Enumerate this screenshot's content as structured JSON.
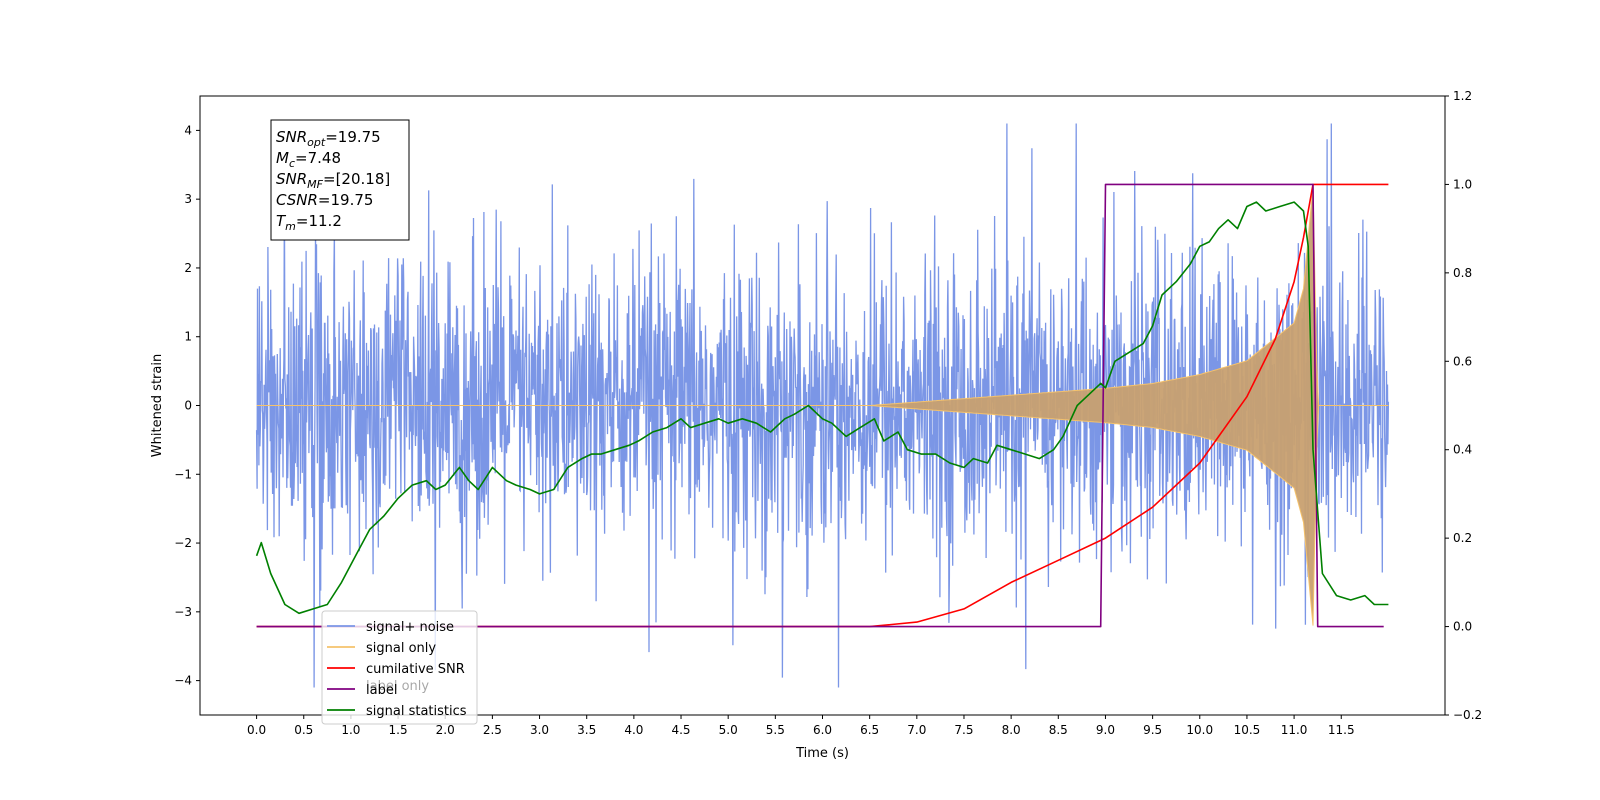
{
  "chart_data": {
    "type": "line",
    "xlabel": "Time (s)",
    "ylabel_left": "Whitened strain",
    "ylabel_right": "",
    "x_ticks": [
      "0.0",
      "0.5",
      "1.0",
      "1.5",
      "2.0",
      "2.5",
      "3.0",
      "3.5",
      "4.0",
      "4.5",
      "5.0",
      "5.5",
      "6.0",
      "6.5",
      "7.0",
      "7.5",
      "8.0",
      "8.5",
      "9.0",
      "9.5",
      "10.0",
      "10.5",
      "11.0",
      "11.5"
    ],
    "xlim": [
      -0.6,
      12.6
    ],
    "ylim_left": [
      -4.5,
      4.5
    ],
    "y_ticks_left": [
      4,
      3,
      2,
      1,
      0,
      -1,
      -2,
      -3,
      -4
    ],
    "y_tick_labels_left": [
      "4",
      "3",
      "2",
      "1",
      "0",
      "−1",
      "−2",
      "−3",
      "−4"
    ],
    "ylim_right": [
      -0.2,
      1.2
    ],
    "y_ticks_right": [
      1.2,
      1.0,
      0.8,
      0.6,
      0.4,
      0.2,
      0.0,
      -0.2
    ],
    "y_tick_labels_right": [
      "1.2",
      "1.0",
      "0.8",
      "0.6",
      "0.4",
      "0.2",
      "0.0",
      "−0.2"
    ],
    "grid": false,
    "annotation": {
      "lines": [
        {
          "sym": "SNR",
          "sub": "opt",
          "value": "=19.75"
        },
        {
          "sym": "M",
          "sub": "c",
          "value": "=7.48"
        },
        {
          "sym": "SNR",
          "sub": "MF",
          "value": "=[20.18]"
        },
        {
          "sym": "CSNR",
          "sub": "",
          "value": "=19.75"
        },
        {
          "sym": "T",
          "sub": "m",
          "value": "=11.2"
        }
      ]
    },
    "legend": {
      "position": "lower-left",
      "entries": [
        {
          "label": "signal+ noise",
          "color": "#7b96e6"
        },
        {
          "label": "signal only",
          "color": "#f5c26b"
        },
        {
          "label": "cumilative SNR",
          "color": "#ff0000"
        },
        {
          "label": "label",
          "color": "#800080"
        },
        {
          "label": "signal statistics",
          "color": "#008000"
        }
      ],
      "hidden_label": "label only"
    },
    "series": [
      {
        "name": "signal+ noise",
        "axis": "left",
        "color": "#7b96e6",
        "x_range": [
          0.0,
          12.0
        ],
        "envelope": "noise, amplitude ~1.5 sigma, spikes up to about 4.1 and down to about -4.1"
      },
      {
        "name": "signal only",
        "axis": "left",
        "color": "#c8a070",
        "x_range": [
          0.0,
          12.0
        ],
        "envelope_x": [
          0.0,
          6.5,
          7.0,
          7.5,
          8.0,
          8.5,
          9.0,
          9.5,
          10.0,
          10.5,
          11.0,
          11.1,
          11.2,
          11.25,
          12.0
        ],
        "envelope_y": [
          0.0,
          0.0,
          0.05,
          0.1,
          0.15,
          0.2,
          0.25,
          0.32,
          0.45,
          0.65,
          1.2,
          1.7,
          3.2,
          0.0,
          0.0
        ]
      },
      {
        "name": "cumilative SNR",
        "axis": "right",
        "color": "#ff0000",
        "x": [
          0.0,
          6.5,
          7.0,
          7.5,
          8.0,
          8.5,
          9.0,
          9.5,
          10.0,
          10.5,
          10.8,
          11.0,
          11.1,
          11.2,
          11.25,
          12.0
        ],
        "y": [
          0.0,
          0.0,
          0.01,
          0.04,
          0.1,
          0.15,
          0.2,
          0.27,
          0.37,
          0.52,
          0.65,
          0.78,
          0.88,
          1.0,
          1.0,
          1.0
        ]
      },
      {
        "name": "label",
        "axis": "right",
        "color": "#800080",
        "x": [
          0.0,
          8.95,
          9.0,
          11.2,
          11.25,
          11.95
        ],
        "y": [
          0.0,
          0.0,
          1.0,
          1.0,
          0.0,
          0.0
        ]
      },
      {
        "name": "signal statistics",
        "axis": "right",
        "color": "#008000",
        "x": [
          0.0,
          0.05,
          0.15,
          0.3,
          0.45,
          0.6,
          0.75,
          0.9,
          1.05,
          1.2,
          1.35,
          1.5,
          1.65,
          1.8,
          1.9,
          2.0,
          2.15,
          2.25,
          2.35,
          2.5,
          2.65,
          2.75,
          2.9,
          3.0,
          3.15,
          3.3,
          3.45,
          3.55,
          3.65,
          3.8,
          3.95,
          4.05,
          4.2,
          4.35,
          4.5,
          4.6,
          4.75,
          4.9,
          5.0,
          5.15,
          5.3,
          5.45,
          5.6,
          5.7,
          5.85,
          6.0,
          6.1,
          6.25,
          6.4,
          6.55,
          6.65,
          6.8,
          6.9,
          7.05,
          7.2,
          7.35,
          7.5,
          7.6,
          7.75,
          7.85,
          8.0,
          8.15,
          8.3,
          8.45,
          8.55,
          8.7,
          8.8,
          8.95,
          9.0,
          9.1,
          9.25,
          9.4,
          9.5,
          9.6,
          9.75,
          9.9,
          10.0,
          10.1,
          10.2,
          10.3,
          10.4,
          10.5,
          10.6,
          10.7,
          10.85,
          11.0,
          11.1,
          11.15,
          11.2,
          11.3,
          11.45,
          11.6,
          11.75,
          11.85,
          12.0
        ],
        "y": [
          0.16,
          0.19,
          0.12,
          0.05,
          0.03,
          0.04,
          0.05,
          0.1,
          0.16,
          0.22,
          0.25,
          0.29,
          0.32,
          0.33,
          0.31,
          0.32,
          0.36,
          0.33,
          0.31,
          0.36,
          0.33,
          0.32,
          0.31,
          0.3,
          0.31,
          0.36,
          0.38,
          0.39,
          0.39,
          0.4,
          0.41,
          0.42,
          0.44,
          0.45,
          0.47,
          0.45,
          0.46,
          0.47,
          0.46,
          0.47,
          0.46,
          0.44,
          0.47,
          0.48,
          0.5,
          0.47,
          0.46,
          0.43,
          0.45,
          0.47,
          0.42,
          0.44,
          0.4,
          0.39,
          0.39,
          0.37,
          0.36,
          0.38,
          0.37,
          0.41,
          0.4,
          0.39,
          0.38,
          0.4,
          0.43,
          0.5,
          0.52,
          0.55,
          0.54,
          0.6,
          0.62,
          0.64,
          0.68,
          0.75,
          0.78,
          0.82,
          0.86,
          0.87,
          0.9,
          0.92,
          0.9,
          0.95,
          0.96,
          0.94,
          0.95,
          0.96,
          0.94,
          0.86,
          0.4,
          0.12,
          0.07,
          0.06,
          0.07,
          0.05,
          0.05
        ]
      }
    ]
  }
}
